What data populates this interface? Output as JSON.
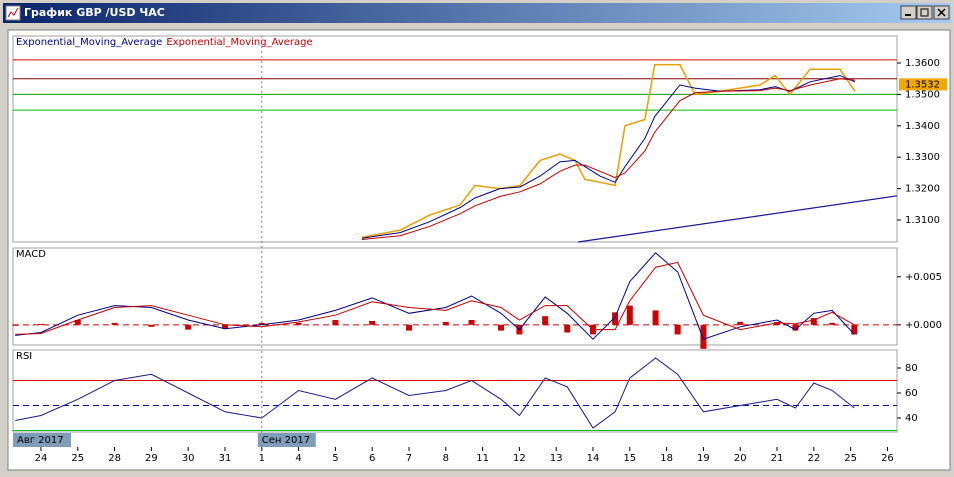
{
  "window_title": "График GBP /USD ЧАС",
  "chart_data": [
    {
      "type": "line",
      "xlim": [
        -0.76,
        23.26
      ],
      "x": [
        8.72,
        9.76,
        10.57,
        11.39,
        11.79,
        12.47,
        13.02,
        13.56,
        14.1,
        14.51,
        14.78,
        15.19,
        15.6,
        15.87,
        16.41,
        16.68,
        17.36,
        17.77,
        18.45,
        19.54,
        19.95,
        20.35,
        20.9,
        21.71,
        22.12
      ],
      "series": [
        {
          "color": "#e8a000",
          "values": [
            1.3045,
            1.3068,
            1.3116,
            1.3148,
            1.321,
            1.32,
            1.321,
            1.329,
            1.331,
            1.329,
            1.323,
            1.322,
            1.321,
            1.34,
            1.342,
            1.3595,
            1.3595,
            1.35,
            1.351,
            1.353,
            1.356,
            1.35,
            1.358,
            1.358,
            1.351
          ]
        },
        {
          "name": "Exponential_Moving_Average",
          "color": "#00008b",
          "values": [
            1.3042,
            1.306,
            1.3095,
            1.314,
            1.317,
            1.32,
            1.3205,
            1.324,
            1.3285,
            1.329,
            1.327,
            1.324,
            1.322,
            1.327,
            1.336,
            1.343,
            1.353,
            1.352,
            1.351,
            1.3515,
            1.3525,
            1.351,
            1.354,
            1.356,
            1.354
          ]
        },
        {
          "name": "Exponential_Moving_Average",
          "color": "#c00000",
          "values": [
            1.3038,
            1.305,
            1.308,
            1.312,
            1.3145,
            1.3175,
            1.319,
            1.3215,
            1.3255,
            1.3275,
            1.3275,
            1.3255,
            1.3235,
            1.325,
            1.332,
            1.338,
            1.348,
            1.3505,
            1.351,
            1.3512,
            1.352,
            1.3512,
            1.353,
            1.355,
            1.3545
          ]
        }
      ],
      "ylim": [
        1.303,
        1.3686
      ],
      "yticks": [
        {
          "value": 1.36,
          "label": "1.3600"
        },
        {
          "value": 1.35,
          "label": "1.3500"
        },
        {
          "value": 1.34,
          "label": "1.3400"
        },
        {
          "value": 1.33,
          "label": "1.3300"
        },
        {
          "value": 1.32,
          "label": "1.3200"
        },
        {
          "value": 1.31,
          "label": "1.3100"
        }
      ],
      "hlines": [
        {
          "value": 1.361,
          "color": "#e00000"
        },
        {
          "value": 1.355,
          "color": "#800000"
        },
        {
          "value": 1.35,
          "color": "#00a000"
        },
        {
          "value": 1.345,
          "color": "#00c000"
        }
      ],
      "trendline": {
        "x": [
          14.59,
          23.26
        ],
        "values": [
          1.303,
          1.3177
        ],
        "color": "#1a1a9c"
      },
      "last_price": 1.3532,
      "last_price_color": "#f0a800"
    },
    {
      "type": "macd",
      "title": "MACD",
      "xlim": [
        -0.76,
        23.26
      ],
      "x": [
        -0.7,
        0,
        1,
        2,
        3,
        4,
        5,
        6,
        7,
        8,
        9,
        10,
        11,
        11.7,
        12.5,
        13,
        13.7,
        14.3,
        15,
        15.6,
        16,
        16.7,
        17.3,
        18,
        19,
        20,
        20.5,
        21,
        21.5,
        22.1
      ],
      "series": [
        {
          "type": "bar",
          "color": "#cc0000",
          "values": [
            -0.0001,
            0.0001,
            0.0005,
            0.0002,
            -0.0002,
            -0.0005,
            -0.0004,
            0.0002,
            0.0002,
            0.0005,
            0.0004,
            -0.0006,
            0.0003,
            0.0005,
            -0.0006,
            -0.001,
            0.0009,
            -0.0008,
            -0.001,
            0.0013,
            0.002,
            0.0015,
            -0.001,
            -0.0025,
            0.0003,
            0.0003,
            -0.0006,
            0.0007,
            0.0002,
            -0.001
          ]
        },
        {
          "color": "#00008b",
          "values": [
            -0.0011,
            -0.0008,
            0.001,
            0.002,
            0.0018,
            0.0005,
            -0.0004,
            0,
            0.0005,
            0.0015,
            0.0028,
            0.0012,
            0.0018,
            0.003,
            0.0012,
            -0.0005,
            0.0029,
            0.0012,
            -0.0015,
            0.0008,
            0.0045,
            0.0075,
            0.0055,
            -0.0015,
            -0.0002,
            0.0005,
            -0.0005,
            0.0012,
            0.0015,
            -0.001
          ]
        },
        {
          "color": "#c00000",
          "values": [
            -0.001,
            -0.0009,
            0.0005,
            0.0018,
            0.002,
            0.001,
            0,
            -0.0002,
            0.0003,
            0.001,
            0.0024,
            0.0018,
            0.0015,
            0.0025,
            0.0018,
            0.0005,
            0.002,
            0.002,
            -0.0005,
            -0.0005,
            0.0025,
            0.006,
            0.0065,
            0.001,
            -0.0005,
            0.0002,
            0.0001,
            0.0005,
            0.0013,
            0
          ]
        }
      ],
      "ylim": [
        -0.0021,
        0.008
      ],
      "yticks": [
        {
          "value": 0.005,
          "label": "+0.005"
        },
        {
          "value": 0,
          "label": "+0.000"
        }
      ],
      "hlines": [
        {
          "value": 0,
          "color": "#cc0000",
          "dashed": true
        }
      ]
    },
    {
      "type": "rsi",
      "title": "RSI",
      "xlim": [
        -0.76,
        23.26
      ],
      "x": [
        -0.7,
        0,
        1,
        2,
        3,
        4,
        5,
        6,
        7,
        8,
        9,
        10,
        11,
        11.7,
        12.5,
        13,
        13.7,
        14.3,
        15,
        15.6,
        16,
        16.7,
        17.3,
        18,
        19,
        20,
        20.5,
        21,
        21.5,
        22.1
      ],
      "series": [
        {
          "color": "#1a1a8c",
          "values": [
            38,
            42,
            55,
            70,
            75,
            60,
            45,
            40,
            62,
            55,
            72,
            58,
            62,
            70,
            55,
            42,
            72,
            65,
            32,
            45,
            72,
            88,
            75,
            45,
            50,
            55,
            48,
            68,
            62,
            48
          ]
        }
      ],
      "ylim": [
        28.8,
        94.4
      ],
      "yticks": [
        80,
        60,
        40
      ],
      "hlines": [
        {
          "value": 70,
          "color": "#e00000"
        },
        {
          "value": 50,
          "color": "#0000a0",
          "dashed": true
        },
        {
          "value": 30,
          "color": "#00c000"
        }
      ],
      "xticks": [
        {
          "value": 0,
          "label": "24"
        },
        {
          "value": 1,
          "label": "25"
        },
        {
          "value": 2,
          "label": "28"
        },
        {
          "value": 3,
          "label": "29"
        },
        {
          "value": 4,
          "label": "30"
        },
        {
          "value": 5,
          "label": "31"
        },
        {
          "value": 6,
          "label": "1"
        },
        {
          "value": 7,
          "label": "4"
        },
        {
          "value": 8,
          "label": "5"
        },
        {
          "value": 9,
          "label": "6"
        },
        {
          "value": 10,
          "label": "7"
        },
        {
          "value": 11,
          "label": "8"
        },
        {
          "value": 12,
          "label": "11"
        },
        {
          "value": 13,
          "label": "12"
        },
        {
          "value": 14,
          "label": "13"
        },
        {
          "value": 15,
          "label": "14"
        },
        {
          "value": 16,
          "label": "15"
        },
        {
          "value": 17,
          "label": "18"
        },
        {
          "value": 18,
          "label": "19"
        },
        {
          "value": 19,
          "label": "20"
        },
        {
          "value": 20,
          "label": "21"
        },
        {
          "value": 21,
          "label": "22"
        },
        {
          "value": 22,
          "label": "25"
        },
        {
          "value": 23,
          "label": "26"
        }
      ],
      "month_labels": [
        {
          "value": -0.76,
          "label": "Авг 2017"
        },
        {
          "value": 6,
          "label": "Сен 2017"
        }
      ]
    }
  ]
}
